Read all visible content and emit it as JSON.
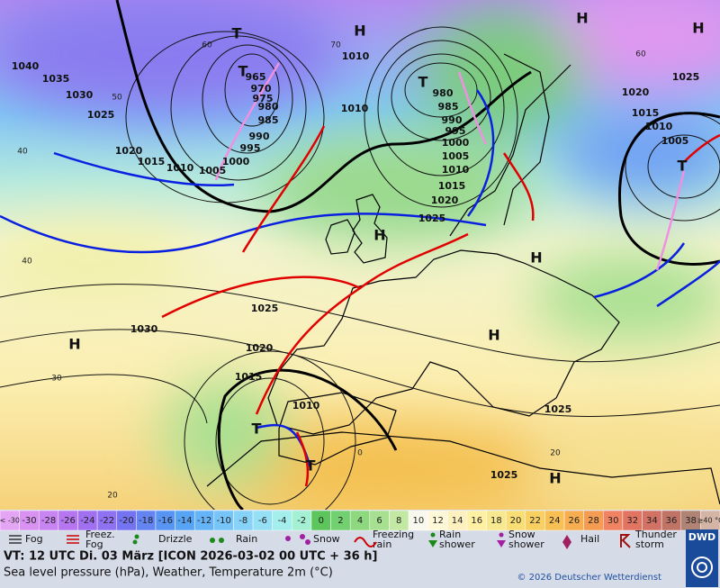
{
  "map": {
    "isobar_labels": [
      "1040",
      "1035",
      "1030",
      "1025",
      "1020",
      "1015",
      "1010",
      "1005",
      "1000",
      "995",
      "990",
      "985",
      "980",
      "975",
      "970",
      "965",
      "1010",
      "1010",
      "980",
      "985",
      "990",
      "995",
      "1000",
      "1005",
      "1010",
      "1015",
      "1020",
      "1025",
      "1025",
      "1030",
      "1020",
      "1015",
      "1010",
      "1025",
      "1025",
      "1020",
      "1015",
      "1010",
      "1005",
      "1025"
    ],
    "pressure_centers": [
      "T",
      "H",
      "T",
      "T",
      "H",
      "H",
      "H",
      "H",
      "H",
      "T",
      "T",
      "H",
      "H",
      "T"
    ],
    "grid_labels": [
      "60",
      "50",
      "40",
      "40",
      "30",
      "20",
      "70",
      "60",
      "20",
      "0"
    ]
  },
  "scale": {
    "cells": [
      {
        "label": "< -30",
        "color": "#e4a6f4"
      },
      {
        "label": "-30",
        "color": "#d992f2"
      },
      {
        "label": "-28",
        "color": "#c884f0"
      },
      {
        "label": "-26",
        "color": "#b676f0"
      },
      {
        "label": "-24",
        "color": "#a070f0"
      },
      {
        "label": "-22",
        "color": "#8e72f2"
      },
      {
        "label": "-20",
        "color": "#7474f2"
      },
      {
        "label": "-18",
        "color": "#6484f2"
      },
      {
        "label": "-16",
        "color": "#5894f2"
      },
      {
        "label": "-14",
        "color": "#58a4f4"
      },
      {
        "label": "-12",
        "color": "#66b4f8"
      },
      {
        "label": "-10",
        "color": "#76c4f8"
      },
      {
        "label": "-8",
        "color": "#86d2f8"
      },
      {
        "label": "-6",
        "color": "#96e0f6"
      },
      {
        "label": "-4",
        "color": "#a4eeee"
      },
      {
        "label": "-2",
        "color": "#a4f0d2"
      },
      {
        "label": "0",
        "color": "#5cc65c"
      },
      {
        "label": "2",
        "color": "#72d070"
      },
      {
        "label": "4",
        "color": "#8ed880"
      },
      {
        "label": "6",
        "color": "#a8e092"
      },
      {
        "label": "8",
        "color": "#c2e8a4"
      },
      {
        "label": "10",
        "color": "#f8f8ee"
      },
      {
        "label": "12",
        "color": "#fff8d8"
      },
      {
        "label": "14",
        "color": "#fff0c0"
      },
      {
        "label": "16",
        "color": "#fff0a4"
      },
      {
        "label": "18",
        "color": "#f8e890"
      },
      {
        "label": "20",
        "color": "#f8de74"
      },
      {
        "label": "22",
        "color": "#f8d062"
      },
      {
        "label": "24",
        "color": "#f8c054"
      },
      {
        "label": "26",
        "color": "#f6ae50"
      },
      {
        "label": "28",
        "color": "#f49c52"
      },
      {
        "label": "30",
        "color": "#f08462"
      },
      {
        "label": "32",
        "color": "#e27462"
      },
      {
        "label": "34",
        "color": "#d27264"
      },
      {
        "label": "36",
        "color": "#c07466"
      },
      {
        "label": "38",
        "color": "#b08474"
      },
      {
        "label": "≥40 °C",
        "color": "#d4b4a4"
      }
    ]
  },
  "legend": {
    "items": [
      {
        "lines": [
          "Fog"
        ]
      },
      {
        "lines": [
          "Freez.",
          "Fog"
        ]
      },
      {
        "lines": [
          "Drizzle"
        ]
      },
      {
        "lines": [
          "Rain"
        ]
      },
      {
        "lines": [
          "Snow"
        ]
      },
      {
        "lines": [
          "Freezing",
          "rain"
        ]
      },
      {
        "lines": [
          "Rain",
          "shower"
        ]
      },
      {
        "lines": [
          "Snow",
          "shower"
        ]
      },
      {
        "lines": [
          "Hail"
        ]
      },
      {
        "lines": [
          "Thunder",
          "storm"
        ]
      }
    ]
  },
  "footer": {
    "valid_time": "VT: 12 UTC Di.  03 März [ICON 2026-03-02  00 UTC + 36 h]",
    "product": "Sea level pressure (hPa), Weather, Temperature 2m (°C)",
    "copyright": "© 2026 Deutscher Wetterdienst",
    "logo": "DWD"
  }
}
